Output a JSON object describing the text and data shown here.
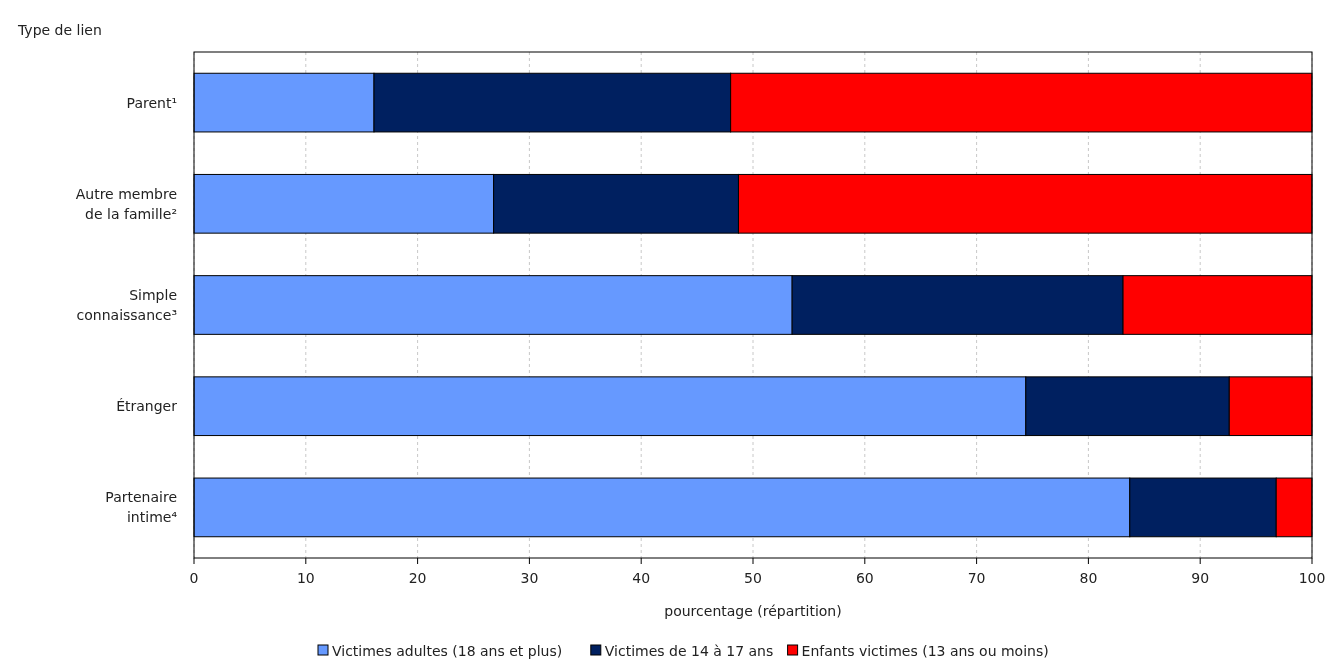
{
  "chart_data": {
    "type": "bar",
    "orientation": "horizontal",
    "stacked": true,
    "ylabel": "Type de lien",
    "xlabel": "pourcentage (répartition)",
    "categories": [
      "Parent¹",
      "Autre membre de la famille²",
      "Simple connaissance³",
      "Étranger",
      "Partenaire intime⁴"
    ],
    "series": [
      {
        "name": "Victimes adultes (18 ans et plus)",
        "color": "#6699ff",
        "values": [
          16.1,
          26.8,
          53.5,
          74.4,
          83.7
        ]
      },
      {
        "name": "Victimes de 14 à 17 ans",
        "color": "#002060",
        "values": [
          31.9,
          21.9,
          29.6,
          18.2,
          13.1
        ]
      },
      {
        "name": "Enfants victimes (13 ans ou moins)",
        "color": "#ff0000",
        "values": [
          52.0,
          51.3,
          16.9,
          7.4,
          3.2
        ]
      }
    ],
    "xlim": [
      0,
      100
    ],
    "xticks": [
      0,
      10,
      20,
      30,
      40,
      50,
      60,
      70,
      80,
      90,
      100
    ],
    "grid": "x",
    "legend": "bottom"
  }
}
